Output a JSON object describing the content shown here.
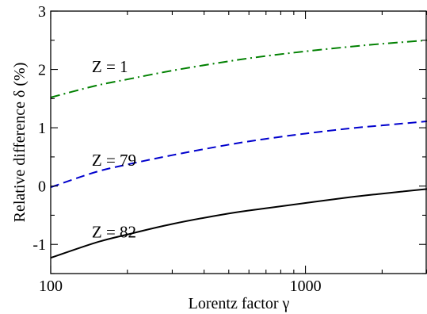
{
  "chart_data": {
    "type": "line",
    "title": "",
    "xlabel": "Lorentz factor γ",
    "ylabel": "Relative difference δ (%)",
    "xscale": "log",
    "xlim": [
      100,
      3000
    ],
    "ylim": [
      -1.5,
      3
    ],
    "grid": false,
    "legend": "none",
    "x_ticks": [
      {
        "value": 100,
        "label": "100"
      },
      {
        "value": 1000,
        "label": "1000"
      }
    ],
    "x_minor_ticks": [
      200,
      300,
      400,
      500,
      600,
      700,
      800,
      900,
      2000,
      3000
    ],
    "y_ticks": [
      {
        "value": -1,
        "label": "-1"
      },
      {
        "value": 0,
        "label": "0"
      },
      {
        "value": 1,
        "label": "1"
      },
      {
        "value": 2,
        "label": "2"
      },
      {
        "value": 3,
        "label": "3"
      }
    ],
    "y_minor_ticks": [
      -1.5,
      -0.5,
      0.5,
      1.5,
      2.5
    ],
    "series": [
      {
        "name": "Z = 1",
        "color": "#008000",
        "style": "dashdot",
        "x": [
          100,
          150,
          200,
          300,
          500,
          700,
          1000,
          1500,
          2000,
          3000
        ],
        "y": [
          1.52,
          1.72,
          1.83,
          1.98,
          2.14,
          2.23,
          2.31,
          2.39,
          2.44,
          2.5
        ],
        "label_at": {
          "x": 145,
          "y": 1.95
        }
      },
      {
        "name": "Z = 79",
        "color": "#0000cd",
        "style": "dashed",
        "x": [
          100,
          150,
          200,
          300,
          500,
          700,
          1000,
          1500,
          2000,
          3000
        ],
        "y": [
          -0.02,
          0.24,
          0.37,
          0.53,
          0.71,
          0.81,
          0.9,
          0.99,
          1.04,
          1.11
        ],
        "label_at": {
          "x": 145,
          "y": 0.35
        }
      },
      {
        "name": "Z = 82",
        "color": "#000000",
        "style": "solid",
        "x": [
          100,
          150,
          200,
          300,
          500,
          700,
          1000,
          1500,
          2000,
          3000
        ],
        "y": [
          -1.23,
          -0.97,
          -0.83,
          -0.65,
          -0.47,
          -0.38,
          -0.29,
          -0.19,
          -0.13,
          -0.05
        ],
        "label_at": {
          "x": 145,
          "y": -0.88
        }
      }
    ]
  }
}
